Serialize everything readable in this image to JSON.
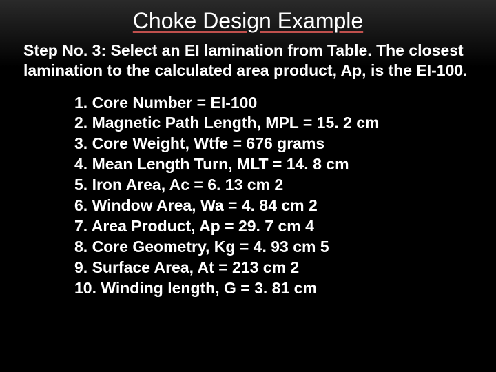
{
  "title": "Choke Design Example",
  "step": "Step No. 3: Select an EI lamination from Table. The closest lamination to the calculated area product, Ap, is the EI-100.",
  "items": [
    "1. Core Number = EI-100",
    "2. Magnetic Path Length, MPL = 15. 2 cm",
    "3. Core Weight, Wtfe = 676 grams",
    "4. Mean Length Turn, MLT = 14. 8 cm",
    "5. Iron Area, Ac = 6. 13 cm 2",
    "6. Window Area, Wa = 4. 84 cm 2",
    "7. Area Product, Ap = 29. 7 cm 4",
    "8. Core Geometry, Kg = 4. 93 cm 5",
    "9. Surface Area, At = 213 cm 2",
    "10. Winding length, G = 3. 81 cm"
  ],
  "colors": {
    "background": "#000000",
    "text": "#ffffff",
    "underline": "#c0504d"
  },
  "typography": {
    "title_fontsize": 32,
    "body_fontsize": 23,
    "body_weight": "bold"
  }
}
